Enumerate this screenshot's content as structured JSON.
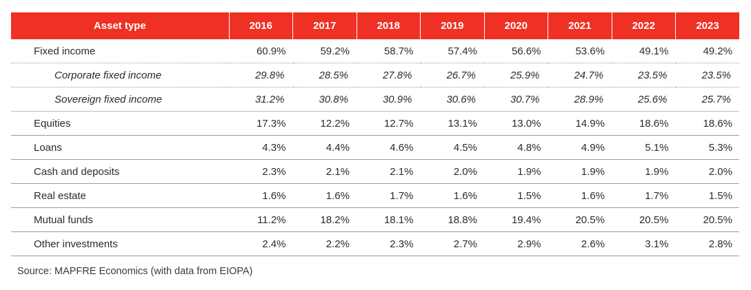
{
  "table": {
    "header": {
      "asset_type": "Asset type",
      "years": [
        "2016",
        "2017",
        "2018",
        "2019",
        "2020",
        "2021",
        "2022",
        "2023"
      ]
    },
    "rows": [
      {
        "label": "Fixed income",
        "values": [
          "60.9%",
          "59.2%",
          "58.7%",
          "57.4%",
          "56.6%",
          "53.6%",
          "49.1%",
          "49.2%"
        ]
      },
      {
        "label": "Corporate fixed income",
        "values": [
          "29.8%",
          "28.5%",
          "27.8%",
          "26.7%",
          "25.9%",
          "24.7%",
          "23.5%",
          "23.5%"
        ]
      },
      {
        "label": "Sovereign fixed income",
        "values": [
          "31.2%",
          "30.8%",
          "30.9%",
          "30.6%",
          "30.7%",
          "28.9%",
          "25.6%",
          "25.7%"
        ]
      },
      {
        "label": "Equities",
        "values": [
          "17.3%",
          "12.2%",
          "12.7%",
          "13.1%",
          "13.0%",
          "14.9%",
          "18.6%",
          "18.6%"
        ]
      },
      {
        "label": "Loans",
        "values": [
          "4.3%",
          "4.4%",
          "4.6%",
          "4.5%",
          "4.8%",
          "4.9%",
          "5.1%",
          "5.3%"
        ]
      },
      {
        "label": "Cash and deposits",
        "values": [
          "2.3%",
          "2.1%",
          "2.1%",
          "2.0%",
          "1.9%",
          "1.9%",
          "1.9%",
          "2.0%"
        ]
      },
      {
        "label": "Real estate",
        "values": [
          "1.6%",
          "1.6%",
          "1.7%",
          "1.6%",
          "1.5%",
          "1.6%",
          "1.7%",
          "1.5%"
        ]
      },
      {
        "label": "Mutual funds",
        "values": [
          "11.2%",
          "18.2%",
          "18.1%",
          "18.8%",
          "19.4%",
          "20.5%",
          "20.5%",
          "20.5%"
        ]
      },
      {
        "label": "Other investments",
        "values": [
          "2.4%",
          "2.2%",
          "2.3%",
          "2.7%",
          "2.9%",
          "2.6%",
          "3.1%",
          "2.8%"
        ]
      }
    ]
  },
  "source": "Source: MAPFRE Economics (with data from EIOPA)",
  "colors": {
    "header_background": "#ee3124",
    "header_text": "#ffffff"
  }
}
